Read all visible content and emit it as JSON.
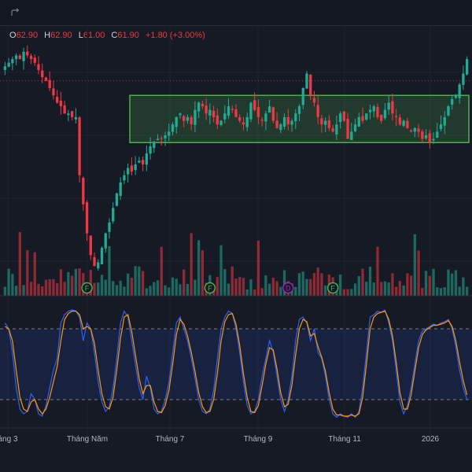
{
  "ohlc": {
    "o_label": "O",
    "o": "62.90",
    "h_label": "H",
    "h": "62.90",
    "l_label": "L",
    "l": "61.00",
    "c_label": "C",
    "c": "61.90",
    "change": "+1.80 (+3.00%)"
  },
  "colors": {
    "background": "#161a25",
    "up": "#22ab94",
    "down": "#f23645",
    "range_box": "#4caf50",
    "stoch_k": "#2962ff",
    "stoch_d": "#ff9800",
    "marker_f": "#4caf50",
    "marker_d": "#9c27b0"
  },
  "toolbar": {
    "redo_icon": "redo-icon"
  },
  "xaxis": {
    "labels": [
      "áng 3",
      "Tháng Năm",
      "Tháng 7",
      "Tháng 9",
      "Tháng 11",
      "2026"
    ]
  },
  "markers": [
    {
      "text": "F",
      "kind": "F"
    },
    {
      "text": "F",
      "kind": "F"
    },
    {
      "text": "D",
      "kind": "D"
    },
    {
      "text": "F",
      "kind": "F"
    }
  ],
  "chart_data": {
    "type": "candlestick",
    "last_candle": {
      "open": 62.9,
      "high": 62.9,
      "low": 61.0,
      "close": 61.9,
      "change": 1.8,
      "change_pct": 3.0
    },
    "price_close_series": [
      88,
      89,
      90,
      91,
      90,
      92,
      91,
      90,
      89,
      87,
      85,
      84,
      82,
      80,
      78,
      77,
      75,
      75,
      74,
      74,
      58,
      50,
      42,
      36,
      33,
      34,
      38,
      42,
      45,
      49,
      53,
      56,
      58,
      60,
      59,
      61,
      62,
      61,
      64,
      66,
      67,
      68,
      68,
      69,
      70,
      72,
      74,
      75,
      73,
      74,
      72,
      76,
      78,
      77,
      75,
      76,
      74,
      72,
      73,
      75,
      77,
      76,
      74,
      73,
      72,
      74,
      78,
      76,
      74,
      73,
      75,
      77,
      73,
      71,
      72,
      74,
      72,
      73,
      75,
      77,
      82,
      86,
      80,
      78,
      74,
      72,
      73,
      71,
      70,
      72,
      75,
      73,
      68,
      70,
      72,
      74,
      73,
      75,
      76,
      77,
      74,
      73,
      76,
      78,
      75,
      74,
      72,
      73,
      71,
      70,
      71,
      70,
      68,
      69,
      67,
      68,
      70,
      72,
      74,
      77,
      79,
      80,
      83,
      86,
      90
    ],
    "range_box": {
      "from_index": 34,
      "to_index": 124,
      "top": 80,
      "bottom": 67
    },
    "stochastic": {
      "levels": [
        80,
        20
      ],
      "k": [
        85,
        80,
        60,
        30,
        12,
        8,
        10,
        25,
        20,
        8,
        6,
        15,
        30,
        45,
        55,
        85,
        92,
        95,
        96,
        95,
        90,
        70,
        85,
        80,
        60,
        35,
        18,
        10,
        14,
        30,
        55,
        85,
        95,
        90,
        70,
        50,
        30,
        20,
        40,
        30,
        12,
        8,
        10,
        20,
        35,
        60,
        85,
        90,
        80,
        70,
        55,
        38,
        20,
        10,
        8,
        12,
        28,
        55,
        80,
        90,
        95,
        93,
        80,
        60,
        35,
        15,
        8,
        10,
        20,
        40,
        55,
        70,
        60,
        40,
        20,
        10,
        20,
        40,
        70,
        88,
        90,
        85,
        70,
        80,
        60,
        55,
        40,
        20,
        8,
        5,
        8,
        6,
        5,
        8,
        5,
        10,
        30,
        60,
        90,
        92,
        95,
        94,
        96,
        85,
        70,
        45,
        18,
        8,
        15,
        30,
        50,
        70,
        78,
        80,
        82,
        84,
        83,
        85,
        86,
        88,
        80,
        65,
        45,
        30,
        20
      ],
      "d": [
        82,
        80,
        70,
        45,
        22,
        12,
        10,
        18,
        20,
        12,
        8,
        12,
        22,
        35,
        48,
        70,
        88,
        93,
        95,
        95,
        92,
        80,
        82,
        80,
        68,
        45,
        25,
        14,
        12,
        22,
        45,
        72,
        90,
        92,
        78,
        58,
        38,
        25,
        32,
        32,
        18,
        10,
        9,
        15,
        28,
        50,
        75,
        88,
        84,
        74,
        60,
        44,
        26,
        14,
        9,
        10,
        20,
        42,
        70,
        86,
        92,
        93,
        84,
        66,
        42,
        22,
        10,
        9,
        15,
        32,
        50,
        64,
        62,
        46,
        26,
        14,
        16,
        32,
        58,
        80,
        88,
        86,
        74,
        76,
        65,
        56,
        44,
        26,
        12,
        7,
        7,
        6,
        6,
        7,
        6,
        8,
        22,
        50,
        80,
        90,
        93,
        94,
        95,
        88,
        74,
        52,
        26,
        12,
        12,
        24,
        44,
        64,
        75,
        79,
        81,
        83,
        83,
        84,
        85,
        87,
        82,
        70,
        52,
        36,
        24
      ]
    }
  }
}
